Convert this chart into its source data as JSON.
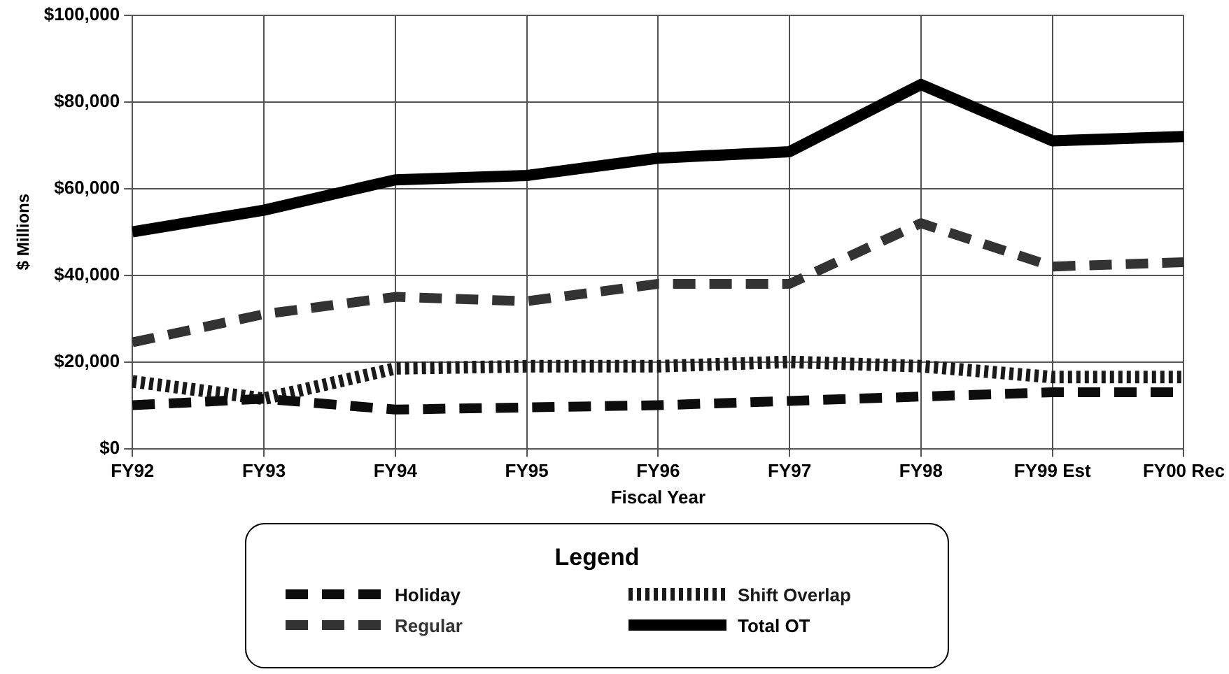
{
  "chart_data": {
    "type": "line",
    "xlabel": "Fiscal Year",
    "ylabel": "$ Millions",
    "legend_title": "Legend",
    "categories": [
      "FY92",
      "FY93",
      "FY94",
      "FY95",
      "FY96",
      "FY97",
      "FY98",
      "FY99 Est",
      "FY00 Rec"
    ],
    "series": [
      {
        "name": "Holiday",
        "color": "#0d0d0d",
        "line_style": "dashed",
        "values": [
          10000,
          11500,
          9000,
          9500,
          10000,
          11000,
          12000,
          13000,
          13000
        ]
      },
      {
        "name": "Shift Overlap",
        "color": "#1a1a1a",
        "line_style": "dotted",
        "values": [
          15500,
          11500,
          18500,
          19000,
          19000,
          20000,
          19000,
          16500,
          16500
        ]
      },
      {
        "name": "Regular",
        "color": "#333333",
        "line_style": "dashed",
        "values": [
          24500,
          31000,
          35000,
          34000,
          38000,
          38000,
          52000,
          42000,
          43000
        ]
      },
      {
        "name": "Total OT",
        "color": "#000000",
        "line_style": "solid",
        "values": [
          50000,
          55000,
          62000,
          63000,
          67000,
          68500,
          84000,
          71000,
          72000
        ]
      }
    ],
    "ylim": [
      0,
      100000
    ],
    "yticks": [
      {
        "value": 0,
        "label": "$0"
      },
      {
        "value": 20000,
        "label": "$20,000"
      },
      {
        "value": 40000,
        "label": "$40,000"
      },
      {
        "value": 60000,
        "label": "$60,000"
      },
      {
        "value": 80000,
        "label": "$80,000"
      },
      {
        "value": 100000,
        "label": "$100,000"
      }
    ],
    "grid": true,
    "legend": "bottom",
    "marker": "none"
  }
}
